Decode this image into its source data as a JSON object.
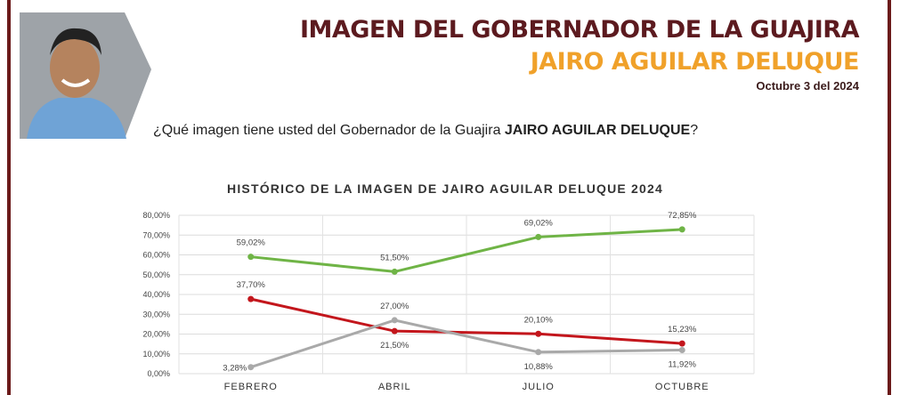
{
  "header": {
    "title": "IMAGEN DEL GOBERNADOR DE LA GUAJIRA",
    "subtitle": "JAIRO AGUILAR DELUQUE",
    "date": "Octubre 3 del 2024"
  },
  "question": {
    "prefix": "¿Qué imagen tiene usted del Gobernador de la Guajira ",
    "name": "JAIRO AGUILAR DELUQUE",
    "suffix": "?"
  },
  "chart_data": {
    "type": "line",
    "title": "HISTÓRICO DE LA IMAGEN DE JAIRO AGUILAR DELUQUE 2024",
    "categories": [
      "FEBRERO",
      "ABRIL",
      "JULIO",
      "OCTUBRE"
    ],
    "series": [
      {
        "color": "#6fb446",
        "values": [
          59.02,
          51.5,
          69.02,
          72.85
        ],
        "value_labels": [
          "59,02%",
          "51,50%",
          "69,02%",
          "72,85%"
        ]
      },
      {
        "color": "#c3161c",
        "values": [
          37.7,
          21.5,
          20.1,
          15.23
        ],
        "value_labels": [
          "37,70%",
          "21,50%",
          "20,10%",
          "15,23%"
        ]
      },
      {
        "color": "#a9a9a9",
        "values": [
          3.28,
          27.0,
          10.88,
          11.92
        ],
        "value_labels": [
          "3,28%",
          "27,00%",
          "10,88%",
          "11,92%"
        ]
      }
    ],
    "ylim": [
      0,
      80
    ],
    "yticks": [
      {
        "value": 0,
        "label": "0,00%"
      },
      {
        "value": 10,
        "label": "10,00%"
      },
      {
        "value": 20,
        "label": "20,00%"
      },
      {
        "value": 30,
        "label": "30,00%"
      },
      {
        "value": 40,
        "label": "40,00%"
      },
      {
        "value": 50,
        "label": "50,00%"
      },
      {
        "value": 60,
        "label": "60,00%"
      },
      {
        "value": 70,
        "label": "70,00%"
      },
      {
        "value": 80,
        "label": "80,00%"
      }
    ],
    "grid": true
  }
}
